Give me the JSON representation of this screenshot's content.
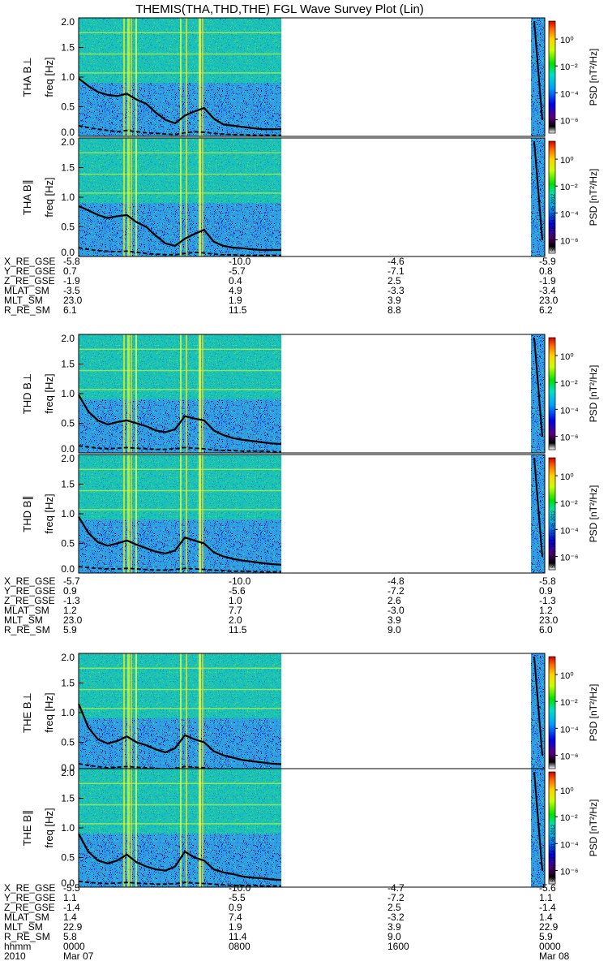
{
  "title": "THEMIS(THA,THD,THE) FGL Wave Survey Plot (Lin)",
  "colorbar": {
    "label": "PSD [nT²/Hz]",
    "ticks": [
      "10⁰",
      "10⁻²",
      "10⁻⁴",
      "10⁻⁶"
    ],
    "stamps": [
      "Sun Sep 16 14:01:45 2012",
      "Sun Sep 16 14:01:45 2012",
      "Sun Sep 16 14:01:45 2012"
    ]
  },
  "chart_data": {
    "type": "heatmap",
    "ylabel": "freq [Hz]",
    "ylim": [
      0.0,
      2.0
    ],
    "yticks": [
      "0.0",
      "0.5",
      "1.0",
      "1.5",
      "2.0"
    ],
    "panels": [
      {
        "probe": "THA",
        "component": "B⊥",
        "label": "THA B⊥",
        "line_solid": [
          0.98,
          0.85,
          0.75,
          0.7,
          0.68,
          0.72,
          0.62,
          0.55,
          0.4,
          0.28,
          0.22,
          0.35,
          0.42,
          0.48,
          0.3,
          0.2,
          0.18,
          0.16,
          0.14,
          0.12,
          0.12,
          0.12
        ],
        "line_dashed": [
          0.18,
          0.15,
          0.12,
          0.1,
          0.08,
          0.1,
          0.08,
          0.06,
          0.05,
          0.04,
          0.03,
          0.06,
          0.08,
          0.07,
          0.05,
          0.04,
          0.03,
          0.03,
          0.02,
          0.02,
          0.02,
          0.02
        ]
      },
      {
        "probe": "THA",
        "component": "B∥",
        "label": "THA B∥",
        "line_solid": [
          0.85,
          0.78,
          0.7,
          0.65,
          0.68,
          0.7,
          0.58,
          0.5,
          0.35,
          0.22,
          0.18,
          0.3,
          0.38,
          0.45,
          0.25,
          0.18,
          0.15,
          0.14,
          0.12,
          0.11,
          0.11,
          0.11
        ],
        "line_dashed": [
          0.15,
          0.12,
          0.1,
          0.09,
          0.08,
          0.09,
          0.07,
          0.05,
          0.04,
          0.03,
          0.03,
          0.05,
          0.07,
          0.06,
          0.04,
          0.03,
          0.03,
          0.02,
          0.02,
          0.02,
          0.02,
          0.02
        ]
      },
      {
        "probe": "THD",
        "component": "B⊥",
        "label": "THD B⊥",
        "line_solid": [
          0.98,
          0.7,
          0.55,
          0.48,
          0.52,
          0.55,
          0.5,
          0.45,
          0.38,
          0.35,
          0.4,
          0.62,
          0.58,
          0.55,
          0.38,
          0.3,
          0.25,
          0.22,
          0.2,
          0.18,
          0.16,
          0.15
        ],
        "line_dashed": [
          0.12,
          0.1,
          0.08,
          0.07,
          0.08,
          0.09,
          0.08,
          0.07,
          0.06,
          0.06,
          0.07,
          0.09,
          0.08,
          0.07,
          0.05,
          0.04,
          0.04,
          0.03,
          0.03,
          0.03,
          0.02,
          0.02
        ]
      },
      {
        "probe": "THD",
        "component": "B∥",
        "label": "THD B∥",
        "line_solid": [
          0.95,
          0.68,
          0.52,
          0.46,
          0.5,
          0.55,
          0.48,
          0.42,
          0.36,
          0.33,
          0.38,
          0.6,
          0.55,
          0.5,
          0.35,
          0.28,
          0.24,
          0.21,
          0.19,
          0.17,
          0.15,
          0.14
        ],
        "line_dashed": [
          0.11,
          0.09,
          0.08,
          0.07,
          0.07,
          0.08,
          0.07,
          0.06,
          0.05,
          0.05,
          0.06,
          0.08,
          0.07,
          0.06,
          0.05,
          0.04,
          0.03,
          0.03,
          0.03,
          0.02,
          0.02,
          0.02
        ]
      },
      {
        "probe": "THE",
        "component": "B⊥",
        "label": "THE B⊥",
        "line_solid": [
          1.15,
          0.75,
          0.55,
          0.48,
          0.52,
          0.6,
          0.5,
          0.45,
          0.38,
          0.33,
          0.4,
          0.62,
          0.55,
          0.5,
          0.35,
          0.28,
          0.24,
          0.2,
          0.18,
          0.16,
          0.14,
          0.13
        ],
        "line_dashed": [
          0.14,
          0.11,
          0.09,
          0.07,
          0.08,
          0.09,
          0.08,
          0.07,
          0.06,
          0.05,
          0.06,
          0.09,
          0.08,
          0.07,
          0.05,
          0.04,
          0.04,
          0.03,
          0.03,
          0.03,
          0.02,
          0.02
        ]
      },
      {
        "probe": "THE",
        "component": "B∥",
        "label": "THE B∥",
        "line_solid": [
          0.9,
          0.6,
          0.45,
          0.4,
          0.45,
          0.55,
          0.42,
          0.35,
          0.3,
          0.28,
          0.35,
          0.6,
          0.5,
          0.45,
          0.3,
          0.25,
          0.22,
          0.18,
          0.16,
          0.15,
          0.13,
          0.12
        ],
        "line_dashed": [
          0.1,
          0.08,
          0.07,
          0.06,
          0.07,
          0.08,
          0.07,
          0.06,
          0.05,
          0.05,
          0.06,
          0.08,
          0.07,
          0.06,
          0.05,
          0.04,
          0.03,
          0.03,
          0.03,
          0.02,
          0.02,
          0.02
        ]
      }
    ]
  },
  "ephemeris": [
    {
      "rows": [
        {
          "name": "X_RE_GSE",
          "values": [
            "-5.8",
            "-10.0",
            "-4.6",
            "-5.9"
          ]
        },
        {
          "name": "Y_RE_GSE",
          "values": [
            "0.7",
            "-5.7",
            "-7.1",
            "0.8"
          ]
        },
        {
          "name": "Z_RE_GSE",
          "values": [
            "-1.9",
            "0.4",
            "2.5",
            "-1.9"
          ]
        },
        {
          "name": "MLAT_SM",
          "values": [
            "-3.5",
            "4.9",
            "-3.3",
            "-3.4"
          ]
        },
        {
          "name": "MLT_SM",
          "values": [
            "23.0",
            "1.9",
            "3.9",
            "23.0"
          ]
        },
        {
          "name": "R_RE_SM",
          "values": [
            "6.1",
            "11.5",
            "8.8",
            "6.2"
          ]
        }
      ]
    },
    {
      "rows": [
        {
          "name": "X_RE_GSE",
          "values": [
            "-5.7",
            "-10.0",
            "-4.8",
            "-5.8"
          ]
        },
        {
          "name": "Y_RE_GSE",
          "values": [
            "0.9",
            "-5.6",
            "-7.2",
            "0.9"
          ]
        },
        {
          "name": "Z_RE_GSE",
          "values": [
            "-1.3",
            "1.0",
            "2.6",
            "-1.3"
          ]
        },
        {
          "name": "MLAT_SM",
          "values": [
            "1.2",
            "7.7",
            "-3.0",
            "1.2"
          ]
        },
        {
          "name": "MLT_SM",
          "values": [
            "23.0",
            "2.0",
            "3.9",
            "23.0"
          ]
        },
        {
          "name": "R_RE_SM",
          "values": [
            "5.9",
            "11.5",
            "9.0",
            "6.0"
          ]
        }
      ]
    },
    {
      "rows": [
        {
          "name": "X_RE_GSE",
          "values": [
            "-5.5",
            "-10.0",
            "-4.7",
            "-5.6"
          ]
        },
        {
          "name": "Y_RE_GSE",
          "values": [
            "1.1",
            "-5.5",
            "-7.2",
            "1.1"
          ]
        },
        {
          "name": "Z_RE_GSE",
          "values": [
            "-1.4",
            "0.9",
            "2.5",
            "-1.4"
          ]
        },
        {
          "name": "MLAT_SM",
          "values": [
            "1.4",
            "7.4",
            "-3.2",
            "1.4"
          ]
        },
        {
          "name": "MLT_SM",
          "values": [
            "22.9",
            "1.9",
            "3.9",
            "22.9"
          ]
        },
        {
          "name": "R_RE_SM",
          "values": [
            "5.8",
            "11.4",
            "9.0",
            "5.9"
          ]
        },
        {
          "name": "hhmm",
          "values": [
            "0000",
            "0800",
            "1600",
            "0000"
          ]
        }
      ]
    }
  ],
  "time_axis": {
    "year": "2010",
    "date_start": "Mar 07",
    "date_end": "Mar 08"
  }
}
